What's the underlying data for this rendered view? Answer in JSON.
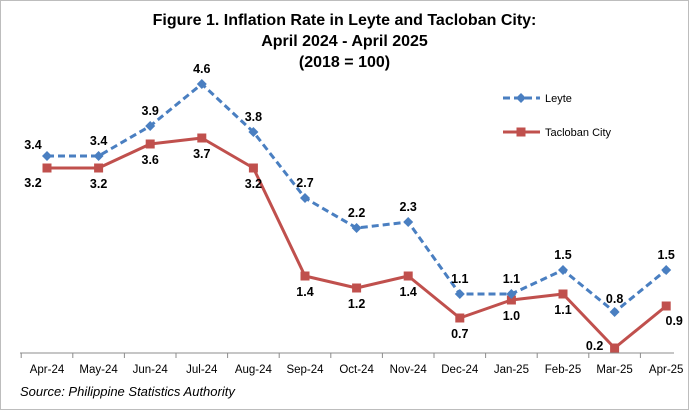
{
  "figure": {
    "title_line1": "Figure 1. Inflation Rate in Leyte and Tacloban City:",
    "title_line2": "April 2024 - April 2025",
    "title_line3": "(2018 = 100)",
    "source": "Source: Philippine Statistics Authority"
  },
  "chart_data": {
    "type": "line",
    "title": "Figure 1. Inflation Rate in Leyte and Tacloban City: April 2024 - April 2025 (2018 = 100)",
    "categories": [
      "Apr-24",
      "May-24",
      "Jun-24",
      "Jul-24",
      "Aug-24",
      "Sep-24",
      "Oct-24",
      "Nov-24",
      "Dec-24",
      "Jan-25",
      "Feb-25",
      "Mar-25",
      "Apr-25"
    ],
    "series": [
      {
        "name": "Leyte",
        "color": "#4a7fc1",
        "line_style": "dashed",
        "marker": "diamond",
        "values": [
          3.4,
          3.4,
          3.9,
          4.6,
          3.8,
          2.7,
          2.2,
          2.3,
          1.1,
          1.1,
          1.5,
          0.8,
          1.5
        ],
        "labels": [
          "3.4",
          "3.4",
          "3.9",
          "4.6",
          "3.8",
          "2.7",
          "2.2",
          "2.3",
          "1.1",
          "1.1",
          "1.5",
          "0.8",
          "1.5"
        ]
      },
      {
        "name": "Tacloban City",
        "color": "#c0504d",
        "line_style": "solid",
        "marker": "square",
        "values": [
          3.2,
          3.2,
          3.6,
          3.7,
          3.2,
          1.4,
          1.2,
          1.4,
          0.7,
          1.0,
          1.1,
          0.2,
          0.9
        ],
        "labels": [
          "3.2",
          "3.2",
          "3.6",
          "3.7",
          "3.2",
          "1.4",
          "1.2",
          "1.4",
          "0.7",
          "1.0",
          "1.1",
          "0.2",
          "0.9"
        ]
      }
    ],
    "xlabel": "",
    "ylabel": "",
    "ylim": [
      0,
      5
    ],
    "grid": false,
    "y_axis_visible": false,
    "legend": "top-right"
  }
}
